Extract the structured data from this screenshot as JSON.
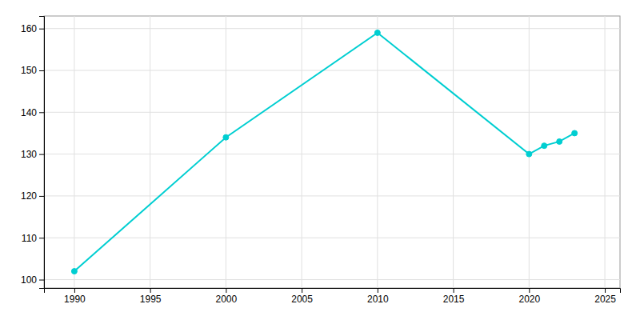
{
  "chart_data": {
    "type": "line",
    "x": [
      1990,
      2000,
      2010,
      2020,
      2021,
      2022,
      2023
    ],
    "values": [
      102,
      134,
      159,
      130,
      132,
      133,
      135
    ],
    "color": "#00CED1",
    "marker": "circle",
    "xlim": [
      1988,
      2026
    ],
    "ylim": [
      98,
      163
    ],
    "xticks": [
      1990,
      1995,
      2000,
      2005,
      2010,
      2015,
      2020,
      2025
    ],
    "yticks": [
      100,
      110,
      120,
      130,
      140,
      150,
      160
    ],
    "grid": true
  }
}
